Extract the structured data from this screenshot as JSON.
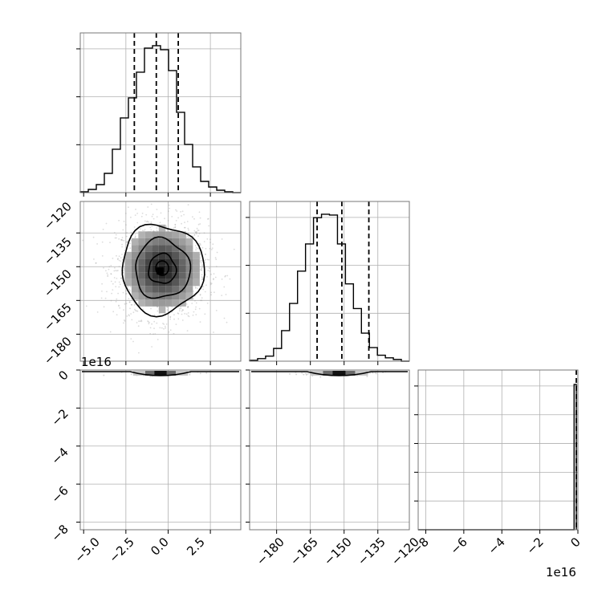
{
  "chart_data": [
    {
      "type": "histogram",
      "panel": "marginal-param-1",
      "bin_range": [
        -5.2,
        4.3
      ],
      "counts": [
        1,
        4,
        10,
        24,
        54,
        93,
        118,
        150,
        180,
        183,
        178,
        152,
        100,
        60,
        32,
        14,
        7,
        3,
        1,
        0
      ],
      "quantiles": [
        -2.0,
        -0.7,
        0.6
      ],
      "y_grid_fractions": [
        0.3,
        0.6,
        0.9
      ],
      "grid": true
    },
    {
      "type": "histogram",
      "panel": "marginal-param-2",
      "bin_range": [
        -192,
        -121
      ],
      "counts": [
        1,
        3,
        6,
        15,
        36,
        68,
        106,
        138,
        169,
        173,
        172,
        138,
        91,
        62,
        33,
        16,
        7,
        4,
        2,
        0
      ],
      "quantiles": [
        -162,
        -151,
        -139
      ],
      "y_grid_fractions": [
        0.3,
        0.6,
        0.9
      ],
      "grid": true
    },
    {
      "type": "histogram",
      "panel": "marginal-param-3",
      "x_exponent_label": "1e16",
      "bin_range": [
        -8.4,
        0
      ],
      "counts_note": "only last bin populated",
      "spike_bin": [
        -0.2,
        0
      ],
      "quantiles": [
        0,
        0,
        0
      ],
      "y_grid_fractions": [
        0.18,
        0.36,
        0.54,
        0.72,
        0.9
      ],
      "grid": true
    },
    {
      "type": "scatter-contour",
      "panel": "joint-param-1-vs-param-2",
      "xlim": [
        -5.2,
        4.3
      ],
      "ylim": [
        -192,
        -121
      ],
      "center": [
        -0.35,
        -151
      ],
      "std": [
        1.35,
        11
      ],
      "contour_levels_sigma": [
        0.6,
        1.2,
        1.8
      ],
      "grid": true
    },
    {
      "type": "scatter-contour",
      "panel": "joint-param-1-vs-param-3",
      "xlim": [
        -5.2,
        4.3
      ],
      "ylim_exponent_label": "1e16",
      "ylim": [
        -8.4,
        0
      ],
      "grid": true
    },
    {
      "type": "scatter-contour",
      "panel": "joint-param-2-vs-param-3",
      "xlim": [
        -192,
        -121
      ],
      "ylim": [
        -8.4,
        0
      ],
      "grid": true
    }
  ],
  "axes": {
    "param1_ticks": [
      "−5.0",
      "−2.5",
      "0.0",
      "2.5"
    ],
    "param1_tick_values": [
      -5.0,
      -2.5,
      0.0,
      2.5
    ],
    "param2_ticks": [
      "−180",
      "−165",
      "−150",
      "−135",
      "−120"
    ],
    "param2_tick_values": [
      -180,
      -165,
      -150,
      -135,
      -120
    ],
    "param3_ticks": [
      "0",
      "−2",
      "−4",
      "−6",
      "−8"
    ],
    "param3_tick_values": [
      0,
      -2,
      -4,
      -6,
      -8
    ],
    "param3_x_ticks": [
      "−8",
      "−6",
      "−4",
      "−2",
      "0"
    ],
    "param3_x_tick_values": [
      -8,
      -6,
      -4,
      -2,
      0
    ],
    "exponent_label_left": "1e16",
    "exponent_label_bottom": "1e16"
  },
  "colors": {
    "grid": "#b0b0b0",
    "line": "#000000",
    "frame": "#777777"
  }
}
